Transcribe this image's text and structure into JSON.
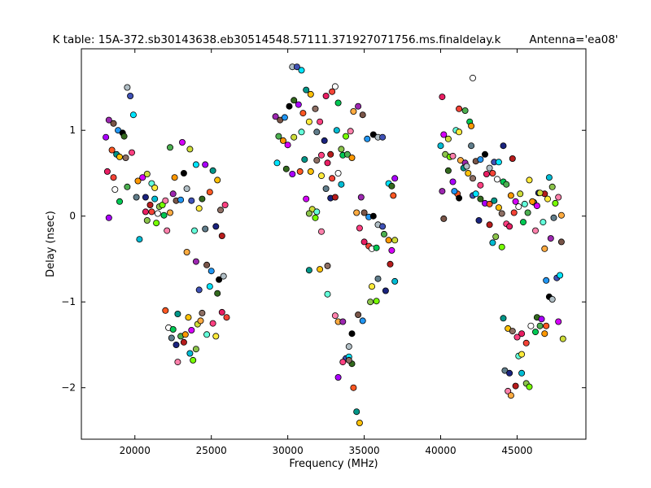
{
  "chart_data": {
    "type": "scatter",
    "title": "K table: 15A-372.sb30143638.eb30514548.57111.371927071756.ms.finaldelay.k",
    "subtitle": "Antenna='ea08'",
    "xlabel": "Frequency (MHz)",
    "ylabel": "Delay (nsec)",
    "xlim": [
      16500,
      49500
    ],
    "ylim": [
      -2.6,
      1.95
    ],
    "xticks": [
      20000,
      25000,
      30000,
      35000,
      40000,
      45000
    ],
    "xtick_labels": [
      "20000",
      "25000",
      "30000",
      "35000",
      "40000",
      "45000"
    ],
    "yticks": [
      1,
      0,
      -1,
      -2
    ],
    "ytick_labels": [
      "1",
      "0",
      "−1",
      "−2"
    ],
    "grid": false,
    "legend": "none",
    "marker_colors": [
      "#00bcd4",
      "#4caf50",
      "#ff5722",
      "#9c27b0",
      "#ffeb3b",
      "#e91e63",
      "#3f51b5",
      "#8bc34a",
      "#ff9800",
      "#009688",
      "#795548",
      "#607d8b",
      "#f44336",
      "#00e5ff",
      "#76ff03",
      "#d500f9",
      "#ffc107",
      "#2196f3",
      "#1a237e",
      "#ffffff",
      "#33691e",
      "#ff80ab",
      "#cddc39",
      "#8d6e63",
      "#000000",
      "#b71c1c",
      "#00c853",
      "#aa00ff",
      "#ffab40",
      "#64ffda",
      "#ff4081",
      "#b0bec5"
    ],
    "points": [
      [
        18300,
        1.12
      ],
      [
        18600,
        1.08
      ],
      [
        18900,
        1.0
      ],
      [
        19200,
        0.97
      ],
      [
        19500,
        1.5
      ],
      [
        19700,
        1.4
      ],
      [
        19900,
        1.18
      ],
      [
        19300,
        0.93
      ],
      [
        18100,
        0.92
      ],
      [
        18500,
        0.77
      ],
      [
        18800,
        0.72
      ],
      [
        19000,
        0.69
      ],
      [
        19400,
        0.68
      ],
      [
        19800,
        0.74
      ],
      [
        18200,
        0.52
      ],
      [
        18600,
        0.45
      ],
      [
        18700,
        0.31
      ],
      [
        19000,
        0.17
      ],
      [
        19500,
        0.34
      ],
      [
        20200,
        0.41
      ],
      [
        20500,
        0.45
      ],
      [
        20800,
        0.49
      ],
      [
        21100,
        0.38
      ],
      [
        21300,
        0.33
      ],
      [
        20100,
        0.22
      ],
      [
        20700,
        0.22
      ],
      [
        21000,
        0.13
      ],
      [
        21300,
        0.2
      ],
      [
        21600,
        0.11
      ],
      [
        21800,
        0.13
      ],
      [
        22000,
        0.18
      ],
      [
        22300,
        0.04
      ],
      [
        22500,
        0.26
      ],
      [
        22700,
        0.18
      ],
      [
        23000,
        0.19
      ],
      [
        23200,
        0.5
      ],
      [
        23400,
        0.32
      ],
      [
        23700,
        0.18
      ],
      [
        24000,
        0.6
      ],
      [
        24400,
        0.2
      ],
      [
        24600,
        0.6
      ],
      [
        24900,
        0.28
      ],
      [
        25100,
        0.53
      ],
      [
        25400,
        0.42
      ],
      [
        25600,
        0.07
      ],
      [
        25900,
        0.13
      ],
      [
        20700,
        0.05
      ],
      [
        21100,
        0.05
      ],
      [
        21500,
        0.03
      ],
      [
        21900,
        0.01
      ],
      [
        22300,
        0.8
      ],
      [
        22600,
        0.45
      ],
      [
        23100,
        0.86
      ],
      [
        23600,
        0.78
      ],
      [
        23900,
        -0.17
      ],
      [
        24200,
        0.09
      ],
      [
        24600,
        -0.15
      ],
      [
        25300,
        -0.12
      ],
      [
        25700,
        -0.23
      ],
      [
        20300,
        -0.27
      ],
      [
        20800,
        -0.05
      ],
      [
        21400,
        -0.08
      ],
      [
        22100,
        -0.17
      ],
      [
        23400,
        -0.42
      ],
      [
        24000,
        -0.53
      ],
      [
        24700,
        -0.57
      ],
      [
        25000,
        -0.64
      ],
      [
        25500,
        -0.74
      ],
      [
        25800,
        -0.7
      ],
      [
        24200,
        -0.86
      ],
      [
        24900,
        -0.82
      ],
      [
        25400,
        -0.9
      ],
      [
        18300,
        -0.02
      ],
      [
        22000,
        -1.1
      ],
      [
        22800,
        -1.14
      ],
      [
        23500,
        -1.18
      ],
      [
        24400,
        -1.13
      ],
      [
        25100,
        -1.25
      ],
      [
        25700,
        -1.12
      ],
      [
        26000,
        -1.18
      ],
      [
        22200,
        -1.3
      ],
      [
        22500,
        -1.32
      ],
      [
        23000,
        -1.4
      ],
      [
        23300,
        -1.38
      ],
      [
        23700,
        -1.33
      ],
      [
        24100,
        -1.26
      ],
      [
        24700,
        -1.38
      ],
      [
        25300,
        -1.4
      ],
      [
        22400,
        -1.42
      ],
      [
        22700,
        -1.5
      ],
      [
        23200,
        -1.47
      ],
      [
        23600,
        -1.6
      ],
      [
        24000,
        -1.55
      ],
      [
        23800,
        -1.68
      ],
      [
        22800,
        -1.7
      ],
      [
        24300,
        -1.22
      ],
      [
        29200,
        1.16
      ],
      [
        29500,
        1.12
      ],
      [
        29800,
        1.15
      ],
      [
        30100,
        1.28
      ],
      [
        30300,
        1.74
      ],
      [
        30600,
        1.74
      ],
      [
        30900,
        1.7
      ],
      [
        30400,
        1.35
      ],
      [
        30700,
        1.3
      ],
      [
        31000,
        1.2
      ],
      [
        31200,
        1.47
      ],
      [
        31500,
        1.42
      ],
      [
        31800,
        1.25
      ],
      [
        32100,
        1.1
      ],
      [
        32500,
        1.4
      ],
      [
        32900,
        1.45
      ],
      [
        33100,
        1.51
      ],
      [
        33300,
        1.32
      ],
      [
        29400,
        0.93
      ],
      [
        29700,
        0.88
      ],
      [
        30000,
        0.83
      ],
      [
        30400,
        0.92
      ],
      [
        30900,
        0.98
      ],
      [
        31400,
        1.1
      ],
      [
        31900,
        0.98
      ],
      [
        32400,
        0.88
      ],
      [
        32800,
        0.72
      ],
      [
        33200,
        1.0
      ],
      [
        33500,
        0.78
      ],
      [
        33800,
        0.93
      ],
      [
        34100,
        0.99
      ],
      [
        34300,
        1.22
      ],
      [
        34600,
        1.28
      ],
      [
        34900,
        1.18
      ],
      [
        35200,
        0.9
      ],
      [
        35600,
        0.95
      ],
      [
        35900,
        0.92
      ],
      [
        36200,
        0.92
      ],
      [
        29300,
        0.62
      ],
      [
        29900,
        0.55
      ],
      [
        30300,
        0.49
      ],
      [
        30800,
        0.52
      ],
      [
        31100,
        0.66
      ],
      [
        31500,
        0.52
      ],
      [
        31900,
        0.65
      ],
      [
        32200,
        0.71
      ],
      [
        32600,
        0.62
      ],
      [
        32900,
        0.44
      ],
      [
        33300,
        0.5
      ],
      [
        33600,
        0.71
      ],
      [
        33900,
        0.72
      ],
      [
        34200,
        0.68
      ],
      [
        31200,
        0.2
      ],
      [
        31600,
        0.08
      ],
      [
        31900,
        0.05
      ],
      [
        32200,
        0.47
      ],
      [
        32500,
        0.32
      ],
      [
        32800,
        0.21
      ],
      [
        33100,
        0.22
      ],
      [
        33500,
        0.37
      ],
      [
        31400,
        0.03
      ],
      [
        31800,
        -0.02
      ],
      [
        32200,
        -0.18
      ],
      [
        34500,
        0.04
      ],
      [
        34800,
        0.22
      ],
      [
        35000,
        0.04
      ],
      [
        35300,
        -0.01
      ],
      [
        35600,
        0.0
      ],
      [
        35900,
        -0.1
      ],
      [
        36200,
        -0.12
      ],
      [
        36600,
        0.38
      ],
      [
        36800,
        0.35
      ],
      [
        37000,
        0.44
      ],
      [
        36900,
        0.24
      ],
      [
        31400,
        -0.63
      ],
      [
        32100,
        -0.62
      ],
      [
        32600,
        -0.58
      ],
      [
        34700,
        -0.14
      ],
      [
        35000,
        -0.3
      ],
      [
        35300,
        -0.35
      ],
      [
        35500,
        -0.38
      ],
      [
        35800,
        -0.37
      ],
      [
        36300,
        -0.21
      ],
      [
        36600,
        -0.28
      ],
      [
        36800,
        -0.4
      ],
      [
        37000,
        -0.28
      ],
      [
        32600,
        -0.91
      ],
      [
        35500,
        -0.82
      ],
      [
        35900,
        -0.73
      ],
      [
        36400,
        -0.87
      ],
      [
        36700,
        -0.56
      ],
      [
        37000,
        -0.76
      ],
      [
        35400,
        -1.0
      ],
      [
        35800,
        -0.99
      ],
      [
        33100,
        -1.16
      ],
      [
        33300,
        -1.23
      ],
      [
        33600,
        -1.23
      ],
      [
        34600,
        -1.15
      ],
      [
        34900,
        -1.22
      ],
      [
        34200,
        -1.37
      ],
      [
        34000,
        -1.52
      ],
      [
        33800,
        -1.66
      ],
      [
        34000,
        -1.64
      ],
      [
        34200,
        -1.72
      ],
      [
        33300,
        -1.88
      ],
      [
        34300,
        -2.0
      ],
      [
        34500,
        -2.28
      ],
      [
        34700,
        -2.41
      ],
      [
        34000,
        -1.68
      ],
      [
        33600,
        -1.7
      ],
      [
        40100,
        1.39
      ],
      [
        41200,
        1.25
      ],
      [
        42100,
        1.61
      ],
      [
        41900,
        1.1
      ],
      [
        41600,
        1.23
      ],
      [
        42000,
        1.05
      ],
      [
        40200,
        0.95
      ],
      [
        40500,
        0.9
      ],
      [
        41000,
        1.0
      ],
      [
        41200,
        0.98
      ],
      [
        42000,
        0.82
      ],
      [
        44100,
        0.82
      ],
      [
        44700,
        0.67
      ],
      [
        40000,
        0.82
      ],
      [
        40300,
        0.72
      ],
      [
        40600,
        0.69
      ],
      [
        40800,
        0.7
      ],
      [
        41300,
        0.65
      ],
      [
        41600,
        0.62
      ],
      [
        42300,
        0.64
      ],
      [
        42600,
        0.66
      ],
      [
        42900,
        0.72
      ],
      [
        43200,
        0.56
      ],
      [
        43500,
        0.63
      ],
      [
        43800,
        0.63
      ],
      [
        40500,
        0.53
      ],
      [
        40800,
        0.4
      ],
      [
        41100,
        0.26
      ],
      [
        41500,
        0.56
      ],
      [
        41800,
        0.5
      ],
      [
        42100,
        0.44
      ],
      [
        42600,
        0.36
      ],
      [
        43000,
        0.49
      ],
      [
        43400,
        0.5
      ],
      [
        43700,
        0.43
      ],
      [
        44100,
        0.4
      ],
      [
        44300,
        0.37
      ],
      [
        44600,
        0.24
      ],
      [
        44900,
        0.17
      ],
      [
        45200,
        0.26
      ],
      [
        45500,
        0.14
      ],
      [
        45800,
        0.42
      ],
      [
        46100,
        0.16
      ],
      [
        46400,
        0.27
      ],
      [
        46800,
        0.26
      ],
      [
        47100,
        0.45
      ],
      [
        47300,
        0.34
      ],
      [
        47500,
        0.15
      ],
      [
        47700,
        0.22
      ],
      [
        47900,
        0.01
      ],
      [
        40100,
        0.29
      ],
      [
        40200,
        -0.03
      ],
      [
        40900,
        0.29
      ],
      [
        41200,
        0.21
      ],
      [
        41700,
        0.58
      ],
      [
        42100,
        0.24
      ],
      [
        42300,
        0.26
      ],
      [
        42600,
        0.2
      ],
      [
        42900,
        0.15
      ],
      [
        43200,
        0.14
      ],
      [
        43500,
        0.18
      ],
      [
        43800,
        0.1
      ],
      [
        44000,
        0.03
      ],
      [
        44300,
        -0.09
      ],
      [
        44500,
        -0.12
      ],
      [
        44800,
        0.04
      ],
      [
        45100,
        0.11
      ],
      [
        45400,
        -0.07
      ],
      [
        45700,
        0.04
      ],
      [
        46000,
        0.17
      ],
      [
        46300,
        0.12
      ],
      [
        46500,
        0.27
      ],
      [
        46700,
        -0.07
      ],
      [
        47000,
        0.2
      ],
      [
        47400,
        -0.02
      ],
      [
        42500,
        -0.05
      ],
      [
        43200,
        -0.1
      ],
      [
        43400,
        -0.31
      ],
      [
        43600,
        -0.24
      ],
      [
        44000,
        -0.36
      ],
      [
        46200,
        -0.17
      ],
      [
        46800,
        -0.38
      ],
      [
        47200,
        -0.26
      ],
      [
        47900,
        -0.3
      ],
      [
        46900,
        -0.75
      ],
      [
        47100,
        -0.94
      ],
      [
        47300,
        -0.97
      ],
      [
        47600,
        -0.72
      ],
      [
        47800,
        -0.69
      ],
      [
        46300,
        -1.18
      ],
      [
        46600,
        -1.2
      ],
      [
        46900,
        -1.28
      ],
      [
        44100,
        -1.19
      ],
      [
        44400,
        -1.31
      ],
      [
        44700,
        -1.34
      ],
      [
        45000,
        -1.41
      ],
      [
        45300,
        -1.37
      ],
      [
        45600,
        -1.48
      ],
      [
        45900,
        -1.28
      ],
      [
        46200,
        -1.35
      ],
      [
        46500,
        -1.28
      ],
      [
        46800,
        -1.37
      ],
      [
        47700,
        -1.23
      ],
      [
        48000,
        -1.43
      ],
      [
        45100,
        -1.63
      ],
      [
        45300,
        -1.61
      ],
      [
        44200,
        -1.8
      ],
      [
        44500,
        -1.83
      ],
      [
        44900,
        -1.98
      ],
      [
        45300,
        -1.83
      ],
      [
        45600,
        -1.95
      ],
      [
        45800,
        -1.99
      ],
      [
        44400,
        -2.04
      ],
      [
        44600,
        -2.09
      ]
    ]
  }
}
